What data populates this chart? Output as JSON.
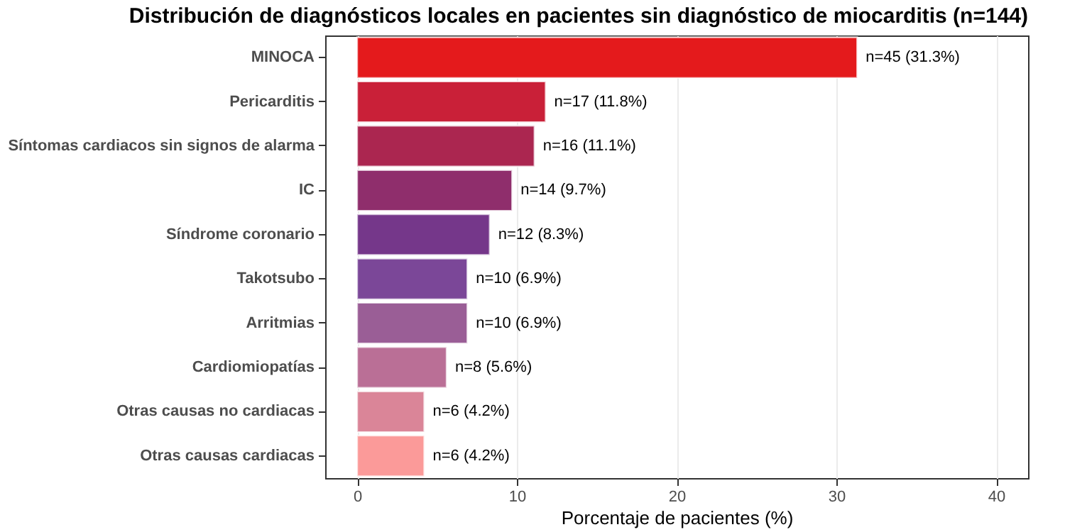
{
  "chart_data": {
    "type": "bar",
    "orientation": "horizontal",
    "title": "Distribución de diagnósticos locales en pacientes sin diagnóstico de miocarditis (n=144)",
    "xlabel": "Porcentaje de pacientes (%)",
    "categories": [
      "MINOCA",
      "Pericarditis",
      "Síntomas cardiacos sin signos de alarma",
      "IC",
      "Síndrome coronario",
      "Takotsubo",
      "Arritmias",
      "Cardiomiopatías",
      "Otras causas no cardiacas",
      "Otras causas cardiacas"
    ],
    "values": [
      31.3,
      11.8,
      11.1,
      9.7,
      8.3,
      6.9,
      6.9,
      5.6,
      4.2,
      4.2
    ],
    "colors": [
      "#e41a1c",
      "#c92038",
      "#ab2650",
      "#8f2e6c",
      "#75378a",
      "#7b4798",
      "#9a5e96",
      "#ba6f96",
      "#da8598",
      "#fb9a99"
    ],
    "value_labels": [
      "n=45 (31.3%)",
      "n=17 (11.8%)",
      "n=16 (11.1%)",
      "n=14 (9.7%)",
      "n=12 (8.3%)",
      "n=10 (6.9%)",
      "n=10 (6.9%)",
      "n=8 (5.6%)",
      "n=6 (4.2%)",
      "n=6 (4.2%)"
    ],
    "xlim": [
      -2,
      42
    ],
    "xticks": [
      0,
      10,
      20,
      30,
      40
    ],
    "grid": "x"
  }
}
